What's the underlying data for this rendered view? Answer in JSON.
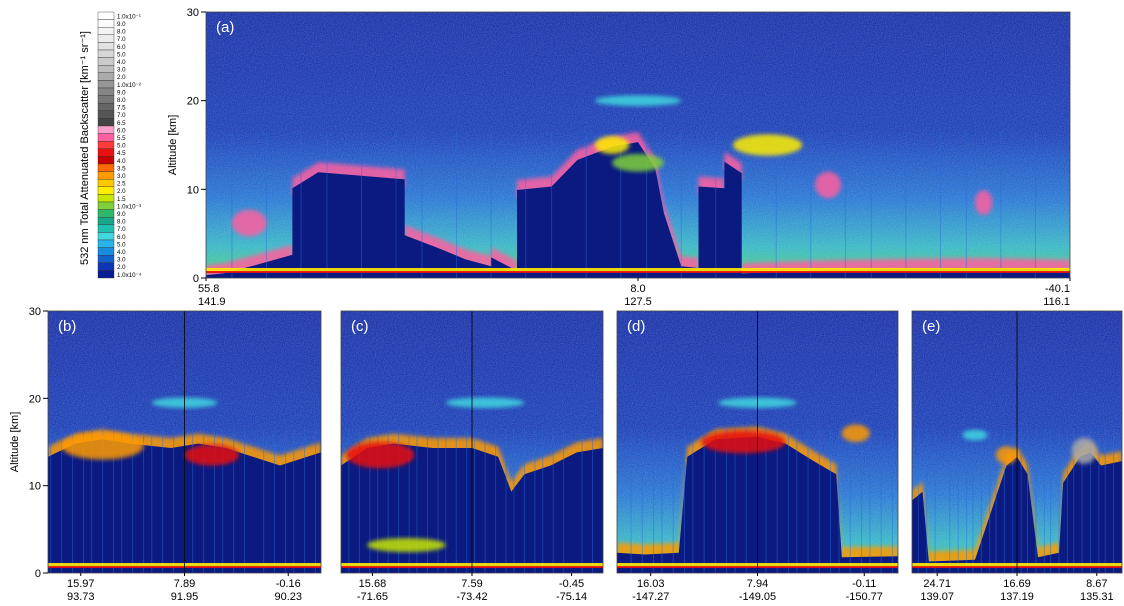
{
  "colorbar": {
    "title": "532 nm Total Attenuated Backscatter [km⁻¹ sr⁻¹]",
    "entries": [
      {
        "label": "1.0x10⁻¹",
        "color": "#ffffff"
      },
      {
        "label": "9.0",
        "color": "#fbfbfb"
      },
      {
        "label": "8.0",
        "color": "#f4f4f4"
      },
      {
        "label": "7.0",
        "color": "#ececec"
      },
      {
        "label": "6.0",
        "color": "#e2e2e2"
      },
      {
        "label": "5.0",
        "color": "#d7d7d7"
      },
      {
        "label": "4.0",
        "color": "#cacaca"
      },
      {
        "label": "3.0",
        "color": "#bdbdbd"
      },
      {
        "label": "2.0",
        "color": "#aaaaaa"
      },
      {
        "label": "1.0x10⁻²",
        "color": "#969696"
      },
      {
        "label": "9.0",
        "color": "#868686"
      },
      {
        "label": "8.0",
        "color": "#777777"
      },
      {
        "label": "7.5",
        "color": "#666666"
      },
      {
        "label": "7.0",
        "color": "#555555"
      },
      {
        "label": "6.5",
        "color": "#444444"
      },
      {
        "label": "6.0",
        "color": "#ff9ec8"
      },
      {
        "label": "5.5",
        "color": "#ff5fa0"
      },
      {
        "label": "5.0",
        "color": "#ff3b3b"
      },
      {
        "label": "4.5",
        "color": "#e81010"
      },
      {
        "label": "4.0",
        "color": "#c80000"
      },
      {
        "label": "3.5",
        "color": "#ff6a00"
      },
      {
        "label": "3.0",
        "color": "#ff9a00"
      },
      {
        "label": "2.5",
        "color": "#ffc800"
      },
      {
        "label": "2.0",
        "color": "#ffee00"
      },
      {
        "label": "1.5",
        "color": "#c8e600"
      },
      {
        "label": "1.0x10⁻³",
        "color": "#7fd13a"
      },
      {
        "label": "9.0",
        "color": "#2fb86a"
      },
      {
        "label": "8.0",
        "color": "#1aa88a"
      },
      {
        "label": "7.0",
        "color": "#20c0b0"
      },
      {
        "label": "6.0",
        "color": "#40d8e0"
      },
      {
        "label": "5.0",
        "color": "#27b4ec"
      },
      {
        "label": "4.0",
        "color": "#1a8ce0"
      },
      {
        "label": "3.0",
        "color": "#1460cc"
      },
      {
        "label": "2.0",
        "color": "#0c36b4"
      },
      {
        "label": "1.0x10⁻⁴",
        "color": "#081c96"
      }
    ]
  },
  "chart_data": [
    {
      "id": "a",
      "panel_label": "(a)",
      "type": "heatmap",
      "ylabel": "Altitude [km]",
      "ylim": [
        0,
        30
      ],
      "yticks": [
        "0",
        "10",
        "20",
        "30"
      ],
      "xticks": [
        [
          "55.8",
          "141.9"
        ],
        [
          "8.0",
          "127.5"
        ],
        [
          "-40.1",
          "116.1"
        ]
      ],
      "profile": [
        [
          0,
          1
        ],
        [
          0.02,
          1.2
        ],
        [
          0.06,
          2.2
        ],
        [
          0.1,
          3.3
        ],
        [
          0.1,
          10.8
        ],
        [
          0.13,
          12.6
        ],
        [
          0.18,
          12.2
        ],
        [
          0.23,
          11.8
        ],
        [
          0.23,
          5.5
        ],
        [
          0.27,
          4
        ],
        [
          0.3,
          2.8
        ],
        [
          0.33,
          2
        ],
        [
          0.33,
          3
        ],
        [
          0.36,
          1.5
        ],
        [
          0.36,
          10.6
        ],
        [
          0.4,
          11
        ],
        [
          0.43,
          14
        ],
        [
          0.47,
          15.5
        ],
        [
          0.5,
          16
        ],
        [
          0.52,
          13
        ],
        [
          0.53,
          8
        ],
        [
          0.55,
          2
        ],
        [
          0.57,
          1.8
        ],
        [
          0.57,
          11
        ],
        [
          0.6,
          10.8
        ],
        [
          0.6,
          13.8
        ],
        [
          0.62,
          12.5
        ],
        [
          0.62,
          1.2
        ],
        [
          0.7,
          1.5
        ],
        [
          0.8,
          1.7
        ],
        [
          0.9,
          1.8
        ],
        [
          1,
          1.6
        ]
      ],
      "features": [
        {
          "x": 0.05,
          "alt": 6.2,
          "rx": 0.02,
          "ry": 1.5,
          "color": "#ff5fa0"
        },
        {
          "x": 0.72,
          "alt": 10.5,
          "rx": 0.015,
          "ry": 1.5,
          "color": "#ff5fa0"
        },
        {
          "x": 0.9,
          "alt": 8.5,
          "rx": 0.01,
          "ry": 1.4,
          "color": "#ff5fa0"
        },
        {
          "x": 0.5,
          "alt": 20,
          "rx": 0.05,
          "ry": 0.6,
          "color": "#40d8e0"
        },
        {
          "x": 0.65,
          "alt": 15,
          "rx": 0.04,
          "ry": 1.2,
          "color": "#ffee00"
        },
        {
          "x": 0.47,
          "alt": 15,
          "rx": 0.02,
          "ry": 1,
          "color": "#ffee00"
        },
        {
          "x": 0.5,
          "alt": 13,
          "rx": 0.03,
          "ry": 1,
          "color": "#7fd13a"
        }
      ]
    },
    {
      "id": "b",
      "panel_label": "(b)",
      "type": "heatmap",
      "ylabel": "Altitude [km]",
      "ylim": [
        0,
        30
      ],
      "yticks": [
        "0",
        "10",
        "20",
        "30"
      ],
      "xticks": [
        [
          "15.97",
          "93.73"
        ],
        [
          "7.89",
          "91.95"
        ],
        [
          "-0.16",
          "90.23"
        ]
      ],
      "profile": [
        [
          0,
          14
        ],
        [
          0.1,
          15.5
        ],
        [
          0.2,
          16
        ],
        [
          0.3,
          15.5
        ],
        [
          0.45,
          15
        ],
        [
          0.55,
          15.5
        ],
        [
          0.65,
          15
        ],
        [
          0.75,
          14
        ],
        [
          0.85,
          13
        ],
        [
          1,
          14.5
        ]
      ],
      "features": [
        {
          "x": 0.5,
          "alt": 19.5,
          "rx": 0.12,
          "ry": 0.6,
          "color": "#40d8e0"
        },
        {
          "x": 0.2,
          "alt": 14.5,
          "rx": 0.15,
          "ry": 1.5,
          "color": "#ff9a00"
        },
        {
          "x": 0.6,
          "alt": 13.5,
          "rx": 0.1,
          "ry": 1.2,
          "color": "#e81010"
        }
      ]
    },
    {
      "id": "c",
      "panel_label": "(c)",
      "type": "heatmap",
      "ylabel": "",
      "ylim": [
        0,
        30
      ],
      "yticks": [],
      "xticks": [
        [
          "15.68",
          "-71.65"
        ],
        [
          "7.59",
          "-73.42"
        ],
        [
          "-0.45",
          "-75.14"
        ]
      ],
      "profile": [
        [
          0,
          13
        ],
        [
          0.1,
          15
        ],
        [
          0.2,
          15.5
        ],
        [
          0.35,
          15
        ],
        [
          0.5,
          15
        ],
        [
          0.6,
          14
        ],
        [
          0.65,
          10
        ],
        [
          0.7,
          12
        ],
        [
          0.8,
          13
        ],
        [
          0.9,
          14.5
        ],
        [
          1,
          15
        ]
      ],
      "features": [
        {
          "x": 0.55,
          "alt": 19.5,
          "rx": 0.15,
          "ry": 0.6,
          "color": "#40d8e0"
        },
        {
          "x": 0.15,
          "alt": 13.5,
          "rx": 0.13,
          "ry": 1.5,
          "color": "#e81010"
        },
        {
          "x": 0.25,
          "alt": 3.2,
          "rx": 0.15,
          "ry": 0.8,
          "color": "#c8e600"
        }
      ]
    },
    {
      "id": "d",
      "panel_label": "(d)",
      "type": "heatmap",
      "ylabel": "",
      "ylim": [
        0,
        30
      ],
      "yticks": [],
      "xticks": [
        [
          "16.03",
          "-147.27"
        ],
        [
          "7.94",
          "-149.05"
        ],
        [
          "-0.11",
          "-150.77"
        ]
      ],
      "profile": [
        [
          0,
          3
        ],
        [
          0.1,
          2.8
        ],
        [
          0.22,
          3
        ],
        [
          0.25,
          14
        ],
        [
          0.35,
          16
        ],
        [
          0.5,
          16.3
        ],
        [
          0.6,
          15.5
        ],
        [
          0.7,
          13.5
        ],
        [
          0.78,
          12
        ],
        [
          0.8,
          2.5
        ],
        [
          1,
          2.6
        ]
      ],
      "features": [
        {
          "x": 0.5,
          "alt": 19.5,
          "rx": 0.14,
          "ry": 0.6,
          "color": "#40d8e0"
        },
        {
          "x": 0.45,
          "alt": 15,
          "rx": 0.15,
          "ry": 1.3,
          "color": "#e81010"
        },
        {
          "x": 0.85,
          "alt": 16,
          "rx": 0.05,
          "ry": 1,
          "color": "#ff9a00"
        }
      ]
    },
    {
      "id": "e",
      "panel_label": "(e)",
      "type": "heatmap",
      "ylabel": "",
      "ylim": [
        0,
        30
      ],
      "yticks": [],
      "xticks": [
        [
          "24.71",
          "139.07"
        ],
        [
          "16.69",
          "137.19"
        ],
        [
          "8.67",
          "135.31"
        ]
      ],
      "profile": [
        [
          0,
          9
        ],
        [
          0.05,
          10
        ],
        [
          0.08,
          2
        ],
        [
          0.3,
          2.2
        ],
        [
          0.45,
          13
        ],
        [
          0.5,
          14
        ],
        [
          0.55,
          12
        ],
        [
          0.6,
          2.5
        ],
        [
          0.7,
          3
        ],
        [
          0.72,
          11
        ],
        [
          0.8,
          14
        ],
        [
          0.85,
          14.5
        ],
        [
          0.9,
          13
        ],
        [
          1,
          13.5
        ]
      ],
      "features": [
        {
          "x": 0.3,
          "alt": 15.8,
          "rx": 0.06,
          "ry": 0.6,
          "color": "#40d8e0"
        },
        {
          "x": 0.45,
          "alt": 13.5,
          "rx": 0.05,
          "ry": 1,
          "color": "#ff9a00"
        },
        {
          "x": 0.82,
          "alt": 14,
          "rx": 0.06,
          "ry": 1.5,
          "color": "#aaaaaa"
        }
      ]
    }
  ]
}
